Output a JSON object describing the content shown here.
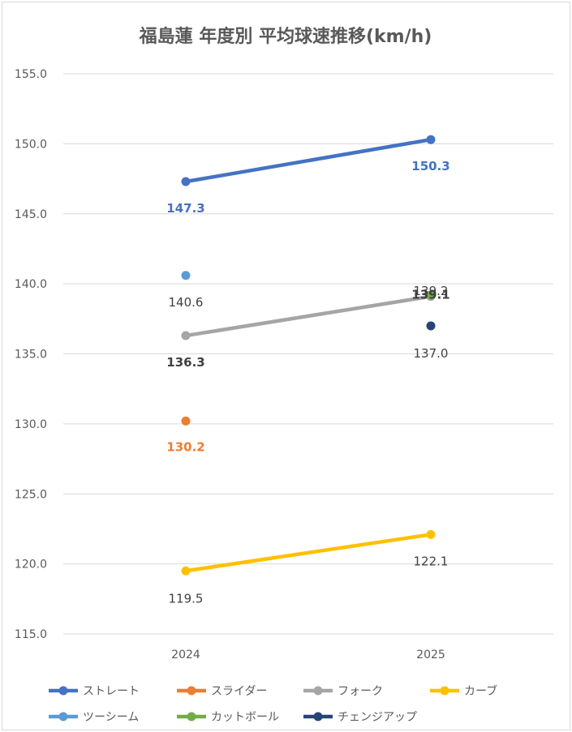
{
  "chart_data": {
    "type": "line",
    "title": "福島蓮 年度別 平均球速推移(km/h)",
    "xlabel": "",
    "ylabel": "",
    "categories": [
      "2024",
      "2025"
    ],
    "ylim": [
      115,
      155
    ],
    "yticks": [
      "115.0",
      "120.0",
      "125.0",
      "130.0",
      "135.0",
      "140.0",
      "145.0",
      "150.0",
      "155.0"
    ],
    "grid": true,
    "legend_position": "bottom",
    "series": [
      {
        "name": "ストレート",
        "color": "#4472c4",
        "values": [
          147.3,
          150.3
        ],
        "labels": [
          "147.3",
          "150.3"
        ],
        "label_color": "#4472c4",
        "label_bold": true
      },
      {
        "name": "スライダー",
        "color": "#ed7d31",
        "values": [
          130.2,
          null
        ],
        "labels": [
          "130.2",
          ""
        ],
        "label_color": "#ed7d31",
        "label_bold": true
      },
      {
        "name": "フォーク",
        "color": "#a5a5a5",
        "values": [
          136.3,
          139.1
        ],
        "labels": [
          "136.3",
          "139.1"
        ],
        "label_color": "#404040",
        "label_bold": true
      },
      {
        "name": "カーブ",
        "color": "#ffc000",
        "values": [
          119.5,
          122.1
        ],
        "labels": [
          "119.5",
          "122.1"
        ],
        "label_color": "#404040",
        "label_bold": false
      },
      {
        "name": "ツーシーム",
        "color": "#5b9bd5",
        "values": [
          140.6,
          null
        ],
        "labels": [
          "140.6",
          ""
        ],
        "label_color": "#404040",
        "label_bold": false
      },
      {
        "name": "カットボール",
        "color": "#70ad47",
        "values": [
          null,
          139.2
        ],
        "labels": [
          "",
          "139.2"
        ],
        "label_color": "#404040",
        "label_bold": false
      },
      {
        "name": "チェンジアップ",
        "color": "#264478",
        "values": [
          null,
          137.0
        ],
        "labels": [
          "",
          "137.0"
        ],
        "label_color": "#404040",
        "label_bold": false
      }
    ]
  }
}
